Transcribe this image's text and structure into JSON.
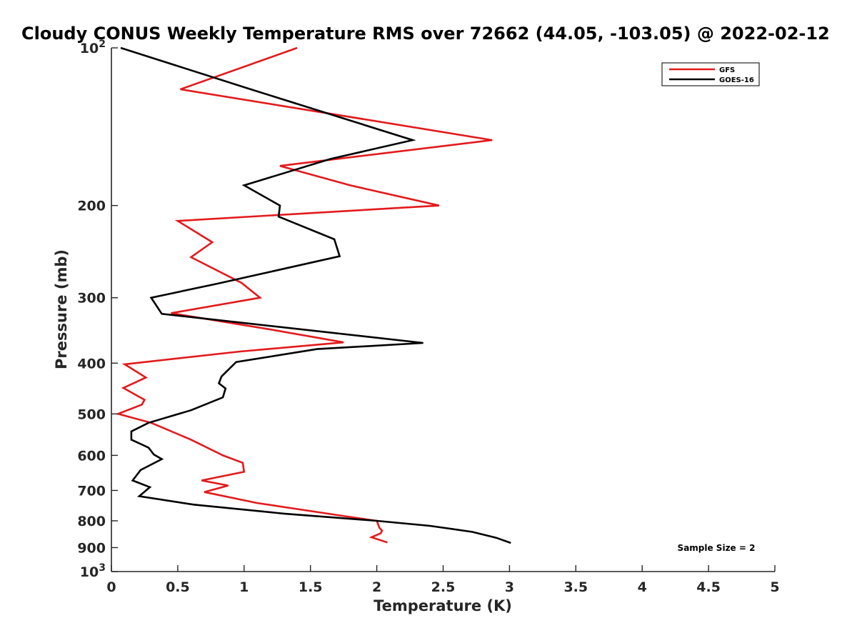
{
  "chart_data": {
    "type": "line",
    "title": "Cloudy CONUS Weekly Temperature RMS over 72662 (44.05, -103.05) @ 2022-02-12",
    "xlabel": "Temperature (K)",
    "ylabel": "Pressure (mb)",
    "xlim": [
      0,
      5
    ],
    "ylim": [
      100,
      1000
    ],
    "y_scale": "log",
    "y_reversed": true,
    "x_ticks": [
      "0",
      "0.5",
      "1",
      "1.5",
      "2",
      "2.5",
      "3",
      "3.5",
      "4",
      "4.5",
      "5"
    ],
    "y_tick_values": [
      100,
      200,
      300,
      400,
      500,
      600,
      700,
      800,
      900,
      1000
    ],
    "y_tick_labels": [
      "10^2",
      "200",
      "300",
      "400",
      "500",
      "600",
      "700",
      "800",
      "900",
      "10^3"
    ],
    "grid": false,
    "legend_position": "top-right",
    "annotation": "Sample Size = 2",
    "series": [
      {
        "name": "GFS",
        "color": "#e31a1c",
        "points": [
          [
            1.4,
            100
          ],
          [
            0.52,
            120
          ],
          [
            2.87,
            150
          ],
          [
            1.27,
            168
          ],
          [
            1.8,
            183
          ],
          [
            2.47,
            200
          ],
          [
            0.5,
            214
          ],
          [
            0.76,
            235
          ],
          [
            0.6,
            251
          ],
          [
            0.98,
            281
          ],
          [
            1.12,
            300
          ],
          [
            0.45,
            321
          ],
          [
            1.2,
            345
          ],
          [
            1.75,
            365
          ],
          [
            0.97,
            380
          ],
          [
            0.1,
            402
          ],
          [
            0.26,
            426
          ],
          [
            0.09,
            446
          ],
          [
            0.25,
            470
          ],
          [
            0.23,
            480
          ],
          [
            0.05,
            500
          ],
          [
            0.3,
            520
          ],
          [
            0.6,
            560
          ],
          [
            0.84,
            600
          ],
          [
            0.99,
            620
          ],
          [
            1.0,
            645
          ],
          [
            0.68,
            670
          ],
          [
            0.88,
            685
          ],
          [
            0.7,
            705
          ],
          [
            1.1,
            740
          ],
          [
            1.7,
            780
          ],
          [
            2.0,
            800
          ],
          [
            2.02,
            825
          ],
          [
            2.04,
            835
          ],
          [
            2.03,
            845
          ],
          [
            1.96,
            860
          ],
          [
            2.08,
            880
          ]
        ]
      },
      {
        "name": "GOES-16",
        "color": "#000000",
        "points": [
          [
            0.07,
            100
          ],
          [
            1.05,
            120
          ],
          [
            2.27,
            150
          ],
          [
            1.65,
            163
          ],
          [
            1.0,
            183
          ],
          [
            1.27,
            200
          ],
          [
            1.26,
            210
          ],
          [
            1.68,
            232
          ],
          [
            1.72,
            250
          ],
          [
            0.8,
            282
          ],
          [
            0.3,
            300
          ],
          [
            0.38,
            322
          ],
          [
            2.35,
            366
          ],
          [
            1.55,
            376
          ],
          [
            0.94,
            398
          ],
          [
            0.83,
            424
          ],
          [
            0.81,
            437
          ],
          [
            0.86,
            447
          ],
          [
            0.84,
            465
          ],
          [
            0.6,
            492
          ],
          [
            0.28,
            520
          ],
          [
            0.15,
            540
          ],
          [
            0.15,
            560
          ],
          [
            0.28,
            580
          ],
          [
            0.32,
            598
          ],
          [
            0.38,
            610
          ],
          [
            0.22,
            640
          ],
          [
            0.16,
            670
          ],
          [
            0.29,
            690
          ],
          [
            0.21,
            718
          ],
          [
            0.62,
            745
          ],
          [
            1.3,
            775
          ],
          [
            2.0,
            800
          ],
          [
            2.4,
            818
          ],
          [
            2.72,
            840
          ],
          [
            2.9,
            862
          ],
          [
            3.01,
            882
          ]
        ]
      }
    ]
  }
}
